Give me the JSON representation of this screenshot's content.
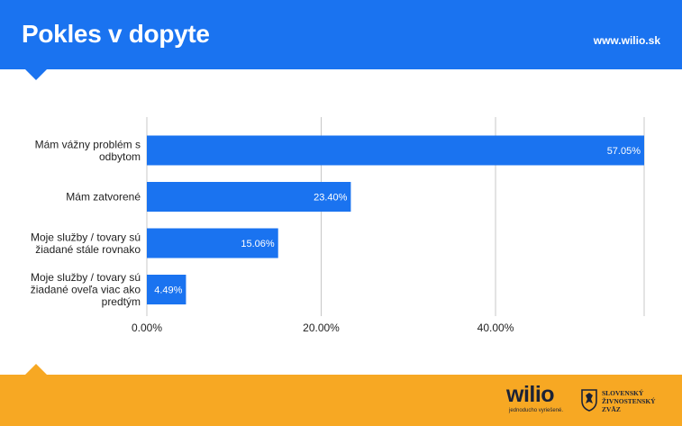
{
  "header": {
    "title": "Pokles v dopyte",
    "url": "www.wilio.sk"
  },
  "footer": {
    "brand": "wilio",
    "tagline": "jednoducho vyriešené.",
    "partner_line1": "SLOVENSKÝ",
    "partner_line2": "ŽIVNOSTENSKÝ",
    "partner_line3": "ZVÄZ"
  },
  "colors": {
    "header": "#1a73f0",
    "bar": "#1a73f0",
    "footer": "#f7a823"
  },
  "chart_data": {
    "type": "bar",
    "orientation": "horizontal",
    "categories": [
      [
        "Mám vážny problém s",
        "odbytom"
      ],
      [
        "Mám zatvorené"
      ],
      [
        "Moje služby / tovary sú",
        "žiadané stále rovnako"
      ],
      [
        "Moje služby / tovary sú",
        "žiadané oveľa viac ako",
        "predtým"
      ]
    ],
    "values": [
      57.05,
      23.4,
      15.06,
      4.49
    ],
    "value_labels": [
      "57.05%",
      "23.40%",
      "15.06%",
      "4.49%"
    ],
    "xlim": [
      0,
      57.05
    ],
    "xticks": [
      0,
      20,
      40
    ],
    "xtick_labels": [
      "0.00%",
      "20.00%",
      "40.00%"
    ],
    "grid": true
  }
}
